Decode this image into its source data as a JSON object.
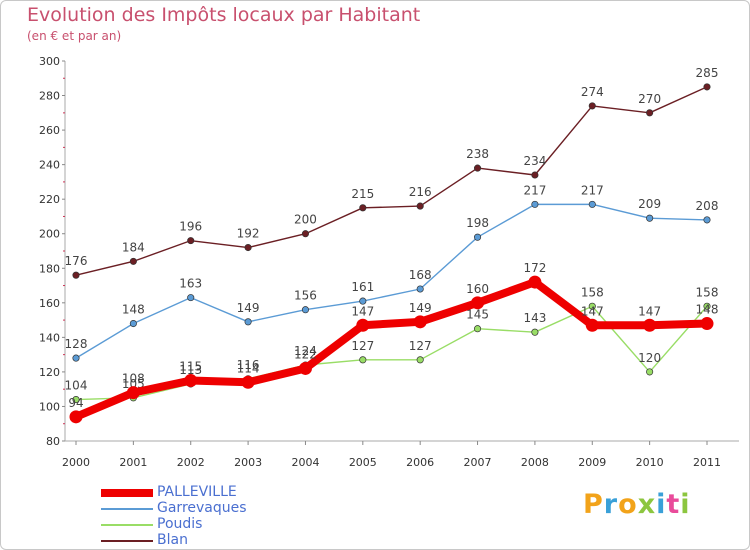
{
  "header": {
    "title": "Evolution des Impôts locaux par Habitant",
    "subtitle": "(en € et par an)"
  },
  "brand": {
    "text": "Proxiti",
    "letters": [
      {
        "ch": "P",
        "color": "#f2a31a"
      },
      {
        "ch": "r",
        "color": "#3aa0d8"
      },
      {
        "ch": "o",
        "color": "#f2a31a"
      },
      {
        "ch": "x",
        "color": "#8cc63f"
      },
      {
        "ch": "i",
        "color": "#3aa0d8"
      },
      {
        "ch": "t",
        "color": "#e94b9a"
      },
      {
        "ch": "i",
        "color": "#8cc63f"
      }
    ]
  },
  "chart_data": {
    "type": "line",
    "title": "Evolution des Impôts locaux par Habitant",
    "subtitle": "(en € et par an)",
    "xlabel": "",
    "ylabel": "",
    "x": [
      "2000",
      "2001",
      "2002",
      "2003",
      "2004",
      "2005",
      "2006",
      "2007",
      "2008",
      "2009",
      "2010",
      "2011"
    ],
    "ylim": [
      80,
      300
    ],
    "yticks": [
      80,
      100,
      120,
      140,
      160,
      180,
      200,
      220,
      240,
      260,
      280,
      300
    ],
    "grid": false,
    "legend": "bottom-left",
    "series": [
      {
        "name": "Blan",
        "color": "#6b1f24",
        "values": [
          176,
          184,
          196,
          192,
          200,
          215,
          216,
          238,
          234,
          274,
          270,
          285
        ],
        "labels": [
          "176",
          "184",
          "196",
          "192",
          "200",
          "215",
          "216",
          "238",
          "234",
          "274",
          "270",
          "285"
        ]
      },
      {
        "name": "Garrevaques",
        "color": "#5b9bd5",
        "values": [
          128,
          148,
          163,
          149,
          156,
          161,
          168,
          198,
          217,
          217,
          209,
          208
        ],
        "labels": [
          "128",
          "148",
          "163",
          "149",
          "156",
          "161",
          "168",
          "198",
          "217",
          "217",
          "209",
          "208"
        ]
      },
      {
        "name": "Poudis",
        "color": "#99dd66",
        "values": [
          104,
          105,
          113,
          116,
          124,
          127,
          127,
          145,
          143,
          158,
          120,
          158
        ],
        "labels": [
          "104",
          "105",
          "113",
          "116",
          "124",
          "127",
          "127",
          "145",
          "143",
          "158",
          "120",
          "158"
        ]
      },
      {
        "name": "PALLEVILLE",
        "color": "#ee0000",
        "values": [
          94,
          108,
          115,
          114,
          122,
          147,
          149,
          160,
          172,
          147,
          147,
          148
        ],
        "labels": [
          "94",
          "108",
          "115",
          "114",
          "122",
          "147",
          "149",
          "160",
          "172",
          "147",
          "147",
          "148"
        ]
      }
    ]
  }
}
